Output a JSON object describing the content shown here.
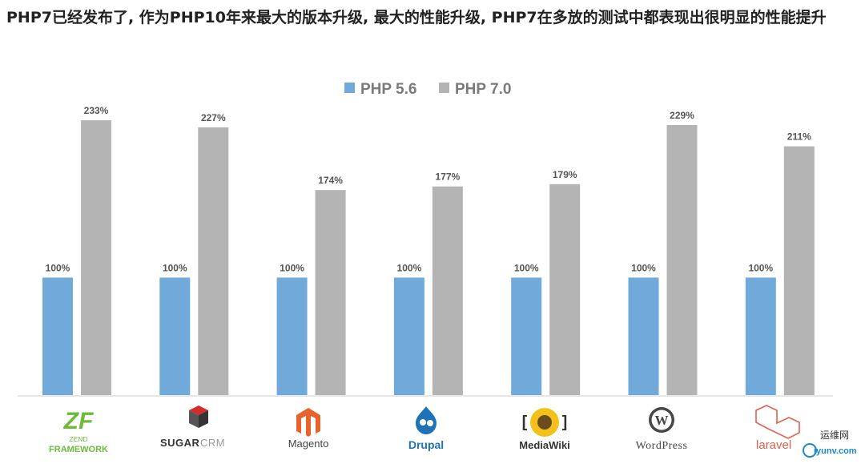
{
  "heading": "PHP7已经发布了, 作为PHP10年来最大的版本升级, 最大的性能升级, PHP7在多放的测试中都表现出很明显的性能提升",
  "chart_data": {
    "type": "bar",
    "categories": [
      "ZEND FRAMEWORK",
      "SUGARCRM",
      "Magento",
      "Drupal",
      "MediaWiki",
      "WordPress",
      "laravel"
    ],
    "series": [
      {
        "name": "PHP 5.6",
        "color": "#6faadb",
        "values": [
          100,
          100,
          100,
          100,
          100,
          100,
          100
        ],
        "labels": [
          "100%",
          "100%",
          "100%",
          "100%",
          "100%",
          "100%",
          "100%"
        ]
      },
      {
        "name": "PHP 7.0",
        "color": "#b4b4b4",
        "values": [
          233,
          227,
          174,
          177,
          179,
          229,
          211
        ],
        "labels": [
          "233%",
          "227%",
          "174%",
          "177%",
          "179%",
          "229%",
          "211%"
        ]
      }
    ],
    "ylim": [
      0,
      250
    ],
    "grid": false,
    "legend": "top-center"
  },
  "logos": {
    "zend": {
      "top": "ZEND",
      "bottom": "FRAMEWORK"
    },
    "sugar": {
      "part1": "SUGAR",
      "part2": "CRM"
    },
    "magento": "Magento",
    "drupal": "Drupal",
    "mediawiki": "MediaWiki",
    "wordpress": "WordPress",
    "laravel": "laravel"
  },
  "watermark": {
    "name": "运维网",
    "domain": "iyunv.com"
  },
  "colors": {
    "php56": "#6faadb",
    "php70": "#b4b4b4",
    "zend": "#6dbb3a",
    "magento": "#e8622c",
    "drupal": "#1e73b8",
    "laravel": "#e2604f"
  }
}
